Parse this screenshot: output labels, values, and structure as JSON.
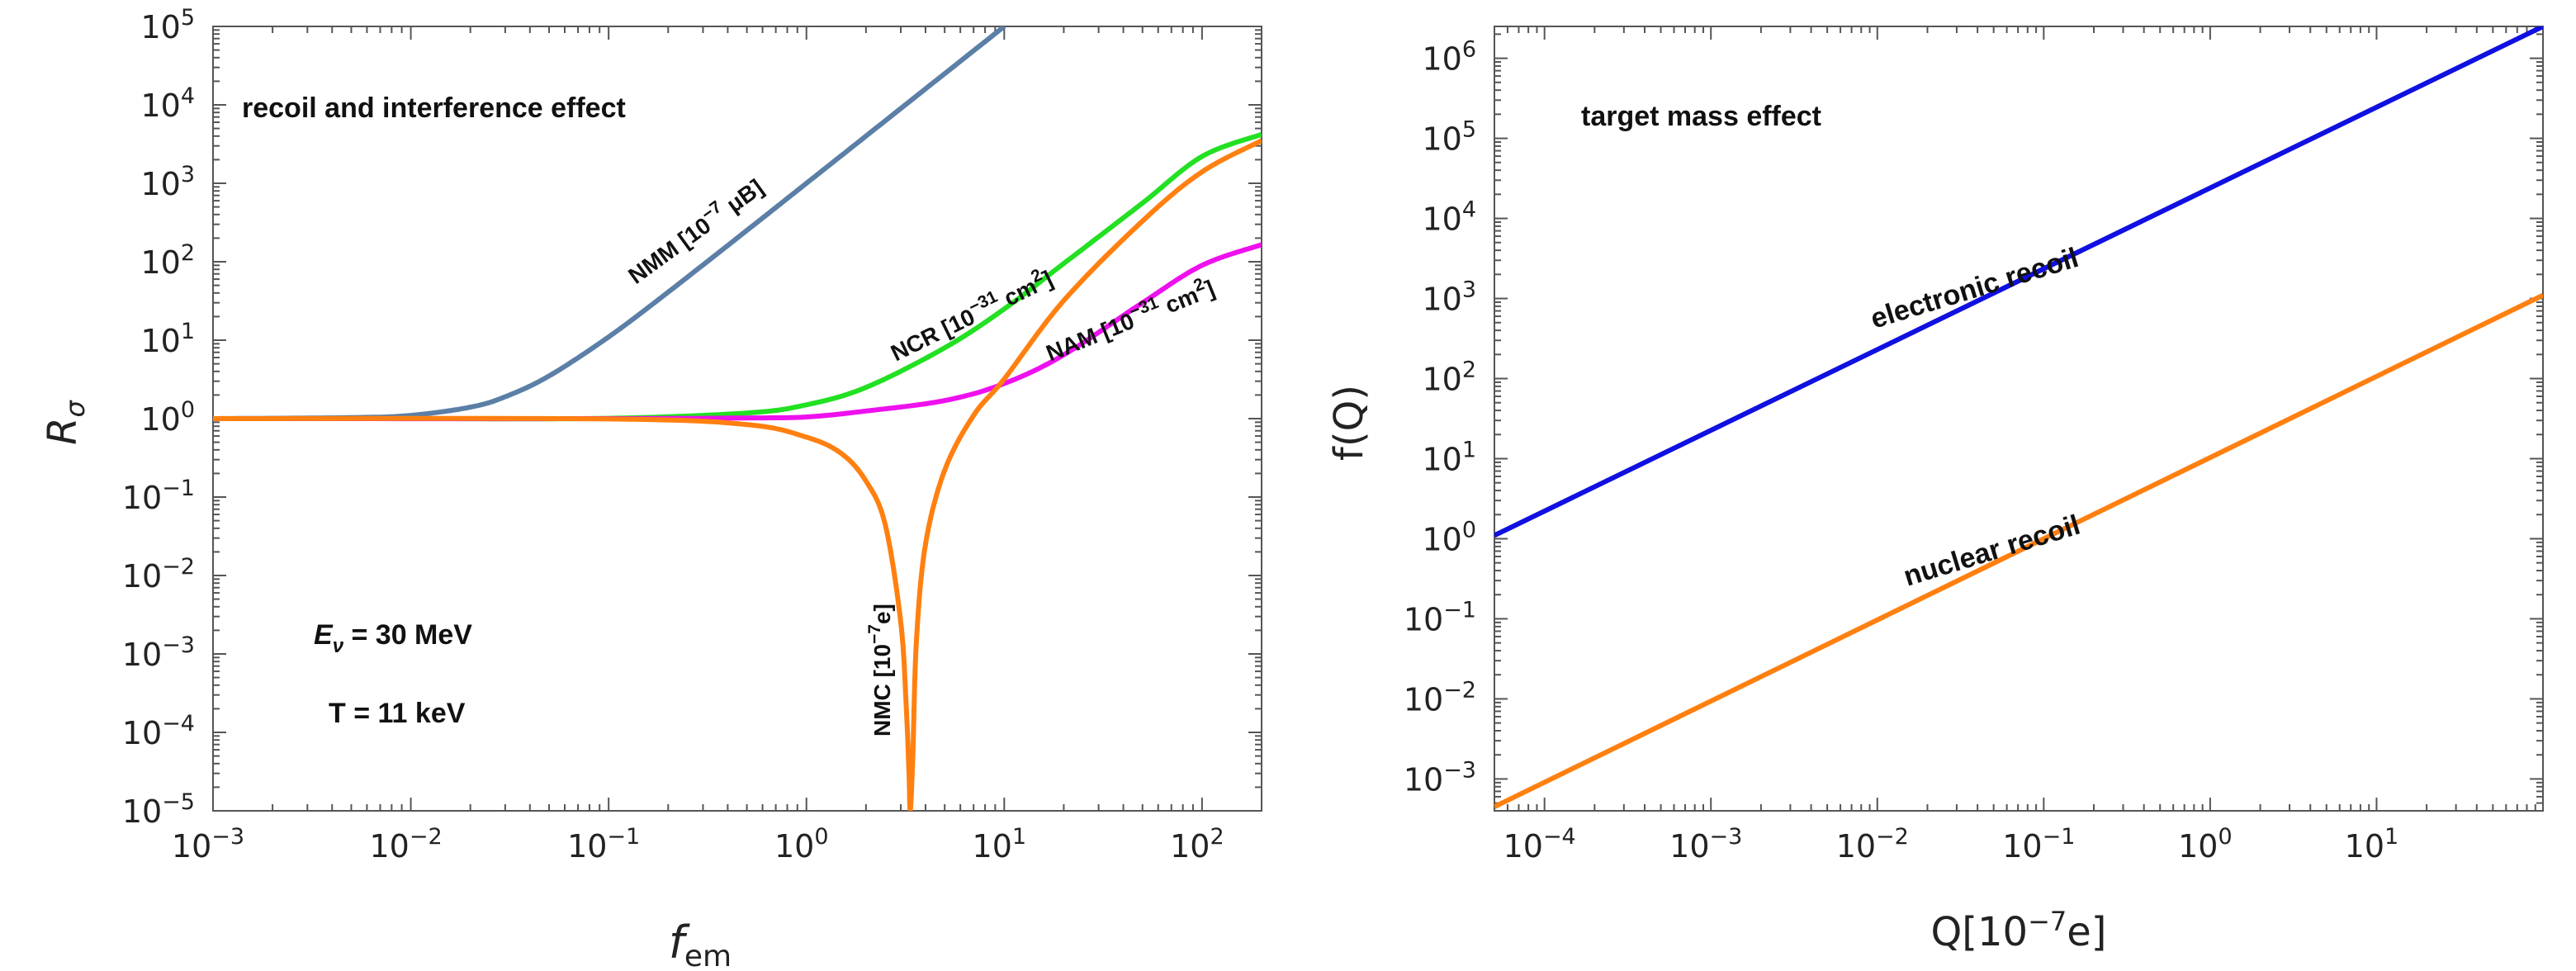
{
  "chart_data": [
    {
      "type": "line",
      "title": "",
      "xlabel": "f",
      "xlabel_sub": "em",
      "ylabel": "R",
      "ylabel_sub": "σ",
      "xscale": "log",
      "yscale": "log",
      "xlim": [
        0.001,
        200
      ],
      "ylim": [
        1e-05,
        100000
      ],
      "xticks": [
        {
          "base": "10",
          "exp": "−3"
        },
        {
          "base": "10",
          "exp": "−2"
        },
        {
          "base": "10",
          "exp": "−1"
        },
        {
          "base": "10",
          "exp": "0"
        },
        {
          "base": "10",
          "exp": "1"
        },
        {
          "base": "10",
          "exp": "2"
        }
      ],
      "yticks": [
        {
          "base": "10",
          "exp": "−5"
        },
        {
          "base": "10",
          "exp": "−4"
        },
        {
          "base": "10",
          "exp": "−3"
        },
        {
          "base": "10",
          "exp": "−2"
        },
        {
          "base": "10",
          "exp": "−1"
        },
        {
          "base": "10",
          "exp": "0"
        },
        {
          "base": "10",
          "exp": "1"
        },
        {
          "base": "10",
          "exp": "2"
        },
        {
          "base": "10",
          "exp": "3"
        },
        {
          "base": "10",
          "exp": "4"
        },
        {
          "base": "10",
          "exp": "5"
        }
      ],
      "annotations": {
        "title": "recoil and interference effect",
        "energy_sym": "E",
        "energy_sub": "ν",
        "energy_val": " = 30 MeV",
        "threshold": "T = 11 keV"
      },
      "series": [
        {
          "name": "NMM",
          "color": "#5b7fa6",
          "label": "NMM [10",
          "label_exp": "−7",
          "label_unit": " μB]",
          "x": [
            0.001,
            0.005,
            0.01,
            0.02,
            0.03,
            0.05,
            0.1,
            0.2,
            0.5,
            1,
            2,
            5,
            10
          ],
          "y": [
            1.0,
            1.03,
            1.1,
            1.4,
            1.9,
            3.5,
            11,
            41,
            251,
            1001,
            4001,
            25001,
            100001
          ]
        },
        {
          "name": "NCR",
          "color": "#22e022",
          "label": "NCR [10",
          "label_exp": "−31",
          "label_unit": " cm",
          "label_exp2": "2",
          "label_end": "]",
          "x": [
            0.001,
            0.01,
            0.1,
            0.5,
            1,
            2,
            5,
            10,
            20,
            50,
            100,
            200
          ],
          "y": [
            1.0,
            1.0,
            1.01,
            1.18,
            1.5,
            2.5,
            8,
            25,
            95,
            560,
            2200,
            4200
          ]
        },
        {
          "name": "NAM",
          "color": "#ee10ee",
          "label": "NAM [10",
          "label_exp": "−31",
          "label_unit": " cm",
          "label_exp2": "2",
          "label_end": "]",
          "x": [
            0.001,
            0.1,
            0.5,
            1,
            2,
            5,
            10,
            20,
            50,
            100,
            200
          ],
          "y": [
            1.0,
            1.0,
            1.02,
            1.05,
            1.25,
            1.7,
            2.8,
            6.5,
            30,
            90,
            165
          ]
        },
        {
          "name": "NMC",
          "color": "#ff8010",
          "label": "NMC [10",
          "label_exp": "−7",
          "label_unit": "e]",
          "x": [
            0.001,
            0.1,
            0.5,
            1,
            1.5,
            2,
            2.5,
            3,
            3.2,
            3.3,
            3.35,
            3.45,
            3.6,
            4,
            5,
            7,
            10,
            20,
            50,
            100,
            200
          ],
          "y": [
            1.0,
            0.99,
            0.84,
            0.58,
            0.36,
            0.16,
            0.045,
            0.0025,
            0.0002,
            3e-05,
            1e-05,
            5e-05,
            0.0015,
            0.025,
            0.22,
            1.1,
            3.2,
            32,
            330,
            1400,
            3500
          ]
        }
      ]
    },
    {
      "type": "line",
      "title": "",
      "xlabel": "Q[10",
      "xlabel_exp": "−7",
      "xlabel_end": "e]",
      "ylabel": "f(Q)",
      "xscale": "log",
      "yscale": "log",
      "xlim": [
        5e-05,
        100
      ],
      "ylim": [
        0.0004,
        2500000
      ],
      "xticks": [
        {
          "base": "10",
          "exp": "−4"
        },
        {
          "base": "10",
          "exp": "−3"
        },
        {
          "base": "10",
          "exp": "−2"
        },
        {
          "base": "10",
          "exp": "−1"
        },
        {
          "base": "10",
          "exp": "0"
        },
        {
          "base": "10",
          "exp": "1"
        }
      ],
      "yticks": [
        {
          "base": "10",
          "exp": "−3"
        },
        {
          "base": "10",
          "exp": "−2"
        },
        {
          "base": "10",
          "exp": "−1"
        },
        {
          "base": "10",
          "exp": "0"
        },
        {
          "base": "10",
          "exp": "1"
        },
        {
          "base": "10",
          "exp": "2"
        },
        {
          "base": "10",
          "exp": "3"
        },
        {
          "base": "10",
          "exp": "4"
        },
        {
          "base": "10",
          "exp": "5"
        },
        {
          "base": "10",
          "exp": "6"
        }
      ],
      "annotations": {
        "title": "target mass effect"
      },
      "series": [
        {
          "name": "electronic recoil",
          "color": "#1010e0",
          "label": "electronic recoil",
          "x": [
            5e-05,
            100
          ],
          "y": [
            1.1,
            2500000
          ]
        },
        {
          "name": "nuclear recoil",
          "color": "#ff8010",
          "label": "nuclear recoil",
          "x": [
            5e-05,
            100
          ],
          "y": [
            0.00045,
            1100
          ]
        }
      ]
    }
  ]
}
